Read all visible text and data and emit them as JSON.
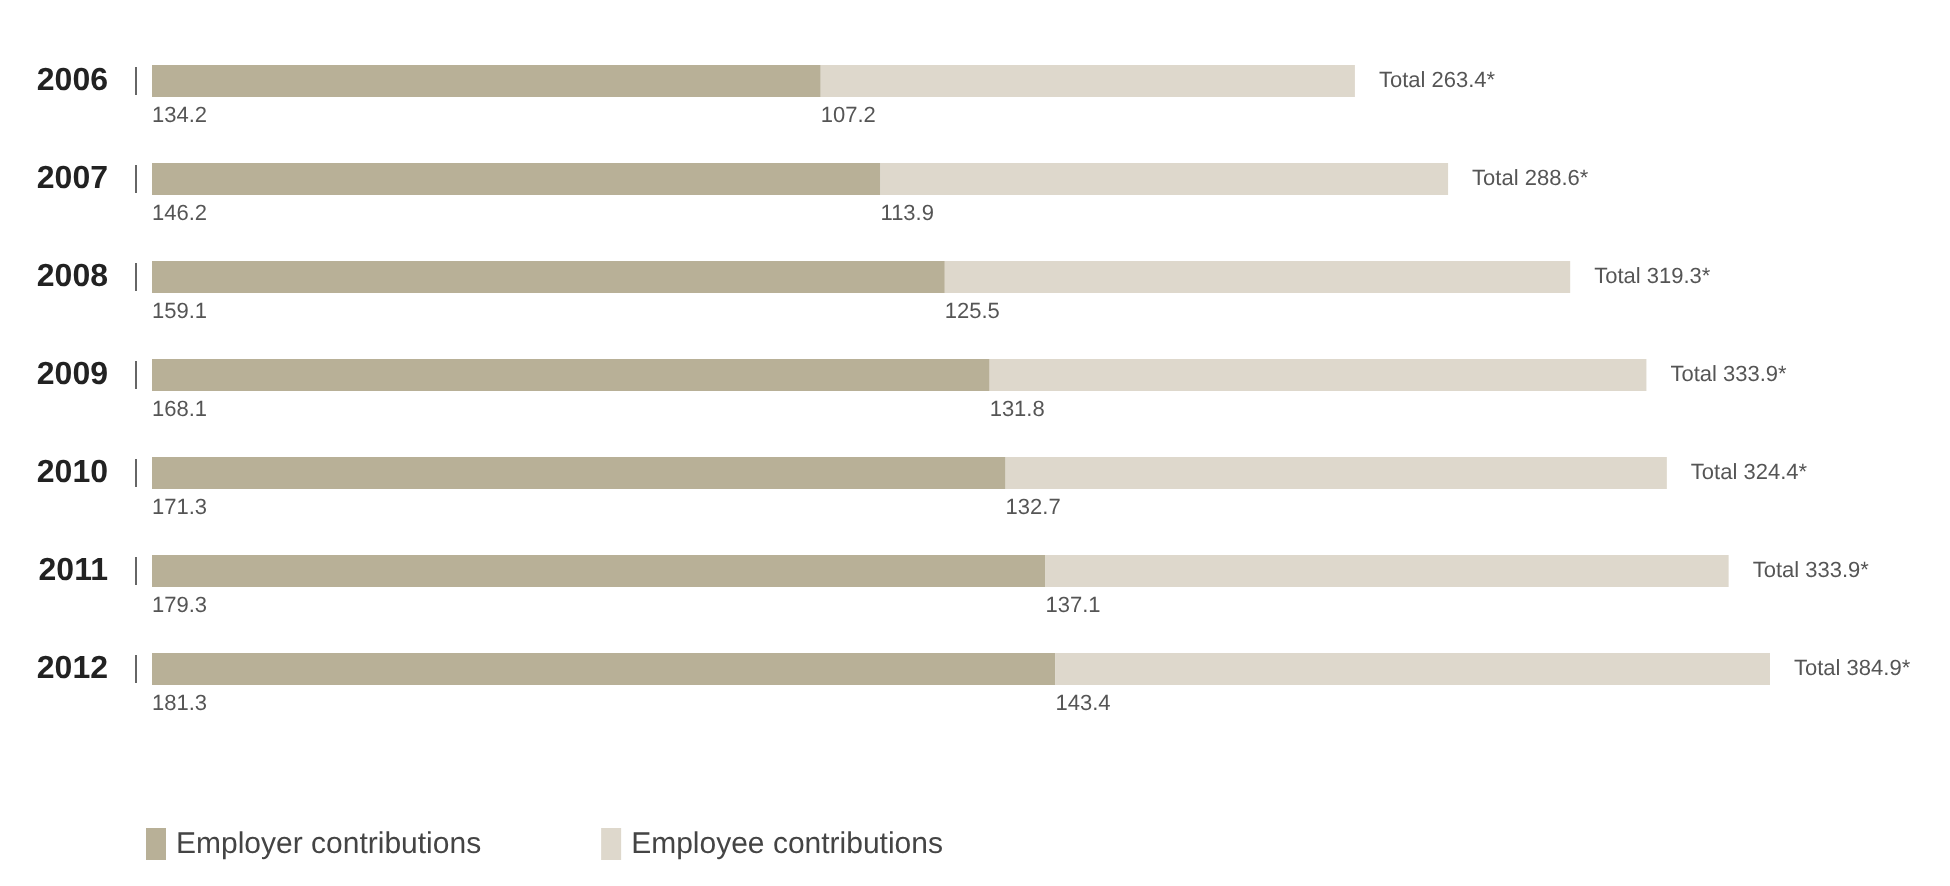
{
  "chart_data": {
    "type": "bar",
    "orientation": "horizontal",
    "stacked": true,
    "data_labels": true,
    "legend": "bottom left",
    "tick_labels": "y",
    "categories": [
      "2006",
      "2007",
      "2008",
      "2009",
      "2010",
      "2011",
      "2012"
    ],
    "series": [
      {
        "name": "Employer contributions",
        "color": "#b8b097",
        "values": [
          134.2,
          146.2,
          159.1,
          168.1,
          171.3,
          179.3,
          181.3
        ]
      },
      {
        "name": "Employee contributions",
        "color": "#ded8cc",
        "values": [
          107.2,
          113.9,
          125.5,
          131.8,
          132.7,
          137.1,
          143.4
        ]
      }
    ],
    "totals": [
      "Total 263.4*",
      "Total 288.6*",
      "Total 319.3*",
      "Total 333.9*",
      "Total 324.4*",
      "Total 333.9*",
      "Total 384.9*"
    ]
  }
}
